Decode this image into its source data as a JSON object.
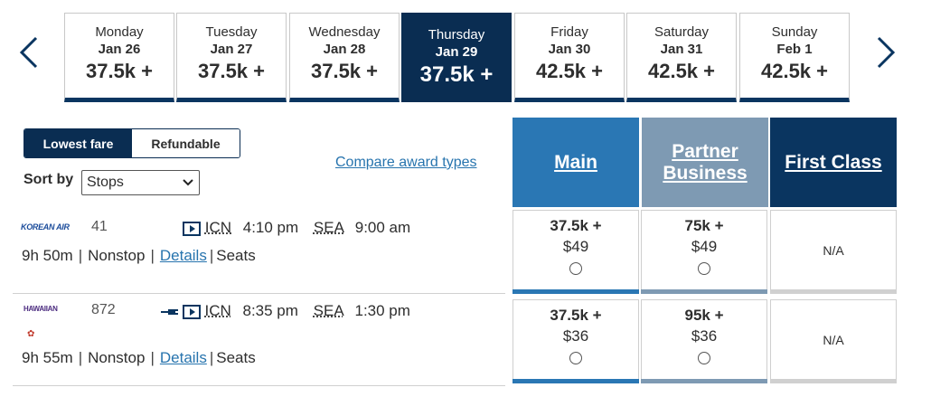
{
  "dates": [
    {
      "day": "Monday",
      "date": "Jan 26",
      "price": "37.5k +"
    },
    {
      "day": "Tuesday",
      "date": "Jan 27",
      "price": "37.5k +"
    },
    {
      "day": "Wednesday",
      "date": "Jan 28",
      "price": "37.5k +"
    },
    {
      "day": "Thursday",
      "date": "Jan 29",
      "price": "37.5k +"
    },
    {
      "day": "Friday",
      "date": "Jan 30",
      "price": "42.5k +"
    },
    {
      "day": "Saturday",
      "date": "Jan 31",
      "price": "42.5k +"
    },
    {
      "day": "Sunday",
      "date": "Feb 1",
      "price": "42.5k +"
    }
  ],
  "selected_date_index": 3,
  "fare_toggle": {
    "lowest": "Lowest fare",
    "refundable": "Refundable",
    "active": "lowest"
  },
  "sort": {
    "label": "Sort by",
    "value": "Stops"
  },
  "compare_link": "Compare award types",
  "cabins": {
    "main": "Main",
    "partner_line1": "Partner",
    "partner_line2": "Business",
    "first": "First Class"
  },
  "colors": {
    "main": "#2a77b4",
    "partner": "#7e9ab3",
    "first": "#0a3560",
    "selected_date": "#0a2d52",
    "link": "#2774ae"
  },
  "flights": [
    {
      "airline": "KOREAN AIR",
      "number": "41",
      "from": "ICN",
      "depart": "4:10 pm",
      "to": "SEA",
      "arrive": "9:00 am",
      "duration": "9h 50m",
      "stops": "Nonstop",
      "details": "Details",
      "seats": "Seats",
      "main": {
        "points": "37.5k +",
        "cash": "$49"
      },
      "partner": {
        "points": "75k +",
        "cash": "$49"
      },
      "first": "N/A"
    },
    {
      "airline": "HAWAIIAN",
      "number": "872",
      "from": "ICN",
      "depart": "8:35 pm",
      "to": "SEA",
      "arrive": "1:30 pm",
      "duration": "9h 55m",
      "stops": "Nonstop",
      "details": "Details",
      "seats": "Seats",
      "main": {
        "points": "37.5k +",
        "cash": "$36"
      },
      "partner": {
        "points": "95k +",
        "cash": "$36"
      },
      "first": "N/A"
    }
  ]
}
